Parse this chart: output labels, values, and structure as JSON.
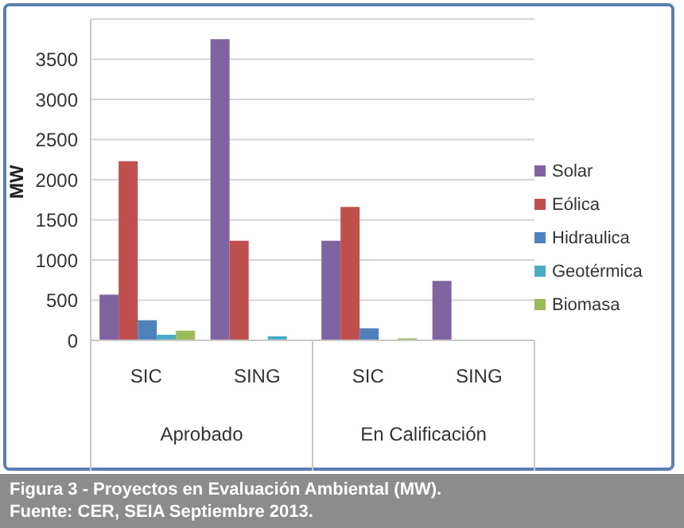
{
  "chart_data": {
    "type": "bar",
    "title": "Figura 3 - Proyectos en Evaluación Ambiental  (MW).",
    "ylabel": "MW",
    "categories": [
      "SIC",
      "SING",
      "SIC",
      "SING"
    ],
    "series": [
      {
        "name": "Solar",
        "color": "#8064a2",
        "values": [
          570,
          3750,
          1240,
          740
        ]
      },
      {
        "name": "Eólica",
        "color": "#c0504d",
        "values": [
          2230,
          1240,
          1660,
          0
        ]
      },
      {
        "name": "Hidraulica",
        "color": "#4f81bd",
        "values": [
          250,
          0,
          150,
          0
        ]
      },
      {
        "name": "Geotérmica",
        "color": "#4bacc6",
        "values": [
          70,
          50,
          0,
          0
        ]
      },
      {
        "name": "Biomasa",
        "color": "#9bbb59",
        "values": [
          120,
          0,
          25,
          0
        ]
      }
    ],
    "ylim": [
      0,
      4000
    ],
    "yticks": [
      0,
      500,
      1000,
      1500,
      2000,
      2500,
      3000,
      3500
    ],
    "grid": "y",
    "legend": "right",
    "annotations": [
      "Aprobado",
      "En Calificación",
      "Fuente: CER, SEIA Septiembre 2013."
    ]
  }
}
